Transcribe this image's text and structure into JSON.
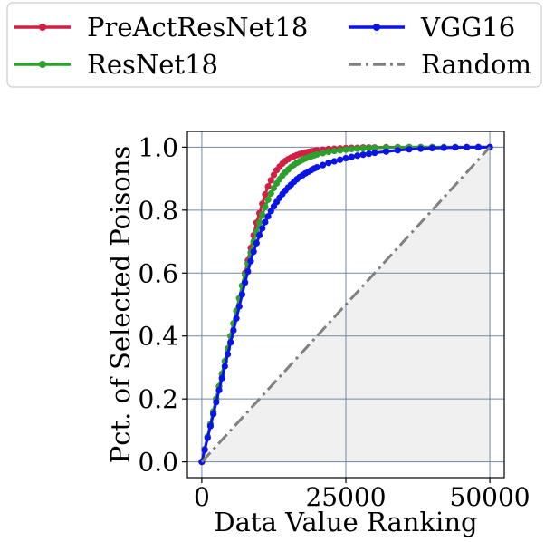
{
  "chart_data": {
    "type": "line",
    "xlabel": "Data Value Ranking",
    "ylabel": "Pct. of Selected Poisons",
    "xlim": [
      -2500,
      52500
    ],
    "ylim": [
      -0.05,
      1.05
    ],
    "xticks": [
      0,
      25000,
      50000
    ],
    "xtick_labels": [
      "0",
      "25000",
      "50000"
    ],
    "yticks": [
      0.0,
      0.2,
      0.4,
      0.6,
      0.8,
      1.0
    ],
    "ytick_labels": [
      "0.0",
      "0.2",
      "0.4",
      "0.6",
      "0.8",
      "1.0"
    ],
    "grid": true,
    "grid_color": "#7486a6",
    "shade_under_random": true,
    "shade_color": "#f1f0f0",
    "legend_position": "top (above plot), 2 columns",
    "series": [
      {
        "name": "PreActResNet18",
        "color": "#d11f45",
        "marker": "circle",
        "x": [
          0,
          500,
          1000,
          1500,
          2000,
          2500,
          3000,
          3500,
          4000,
          4500,
          5000,
          5500,
          6000,
          6500,
          7000,
          7500,
          8000,
          8500,
          9000,
          9500,
          10000,
          10500,
          11000,
          11500,
          12000,
          12500,
          13000,
          13500,
          14000,
          14500,
          15000,
          15500,
          16000,
          16500,
          17000,
          17500,
          18000,
          18500,
          19000,
          19500,
          20000,
          21000,
          22000,
          23000,
          24000,
          25000,
          26000,
          27000,
          28000,
          29000,
          30000,
          32000,
          34000,
          36000,
          38000,
          40000,
          42000,
          44000,
          46000,
          48000,
          50000
        ],
        "y": [
          0.0,
          0.04,
          0.08,
          0.12,
          0.16,
          0.2,
          0.24,
          0.28,
          0.32,
          0.36,
          0.4,
          0.44,
          0.48,
          0.52,
          0.56,
          0.6,
          0.64,
          0.68,
          0.72,
          0.76,
          0.79,
          0.82,
          0.85,
          0.875,
          0.895,
          0.912,
          0.927,
          0.938,
          0.948,
          0.956,
          0.962,
          0.967,
          0.971,
          0.975,
          0.978,
          0.981,
          0.983,
          0.985,
          0.987,
          0.988,
          0.99,
          0.992,
          0.994,
          0.995,
          0.996,
          0.997,
          0.998,
          0.998,
          0.999,
          0.999,
          0.999,
          1.0,
          1.0,
          1.0,
          1.0,
          1.0,
          1.0,
          1.0,
          1.0,
          1.0,
          1.0
        ]
      },
      {
        "name": "ResNet18",
        "color": "#2ca02c",
        "marker": "circle",
        "x": [
          0,
          500,
          1000,
          1500,
          2000,
          2500,
          3000,
          3500,
          4000,
          4500,
          5000,
          5500,
          6000,
          6500,
          7000,
          7500,
          8000,
          8500,
          9000,
          9500,
          10000,
          10500,
          11000,
          11500,
          12000,
          12500,
          13000,
          13500,
          14000,
          14500,
          15000,
          15500,
          16000,
          16500,
          17000,
          17500,
          18000,
          18500,
          19000,
          19500,
          20000,
          21000,
          22000,
          23000,
          24000,
          25000,
          26000,
          27000,
          28000,
          29000,
          30000,
          32000,
          34000,
          36000,
          38000,
          40000,
          42000,
          44000,
          46000,
          48000,
          50000
        ],
        "y": [
          0.0,
          0.04,
          0.08,
          0.12,
          0.16,
          0.2,
          0.24,
          0.28,
          0.32,
          0.36,
          0.4,
          0.44,
          0.48,
          0.52,
          0.56,
          0.595,
          0.63,
          0.665,
          0.7,
          0.73,
          0.76,
          0.785,
          0.81,
          0.833,
          0.853,
          0.87,
          0.885,
          0.898,
          0.91,
          0.92,
          0.929,
          0.937,
          0.944,
          0.95,
          0.955,
          0.96,
          0.964,
          0.968,
          0.971,
          0.974,
          0.977,
          0.981,
          0.985,
          0.988,
          0.99,
          0.992,
          0.994,
          0.995,
          0.996,
          0.997,
          0.998,
          0.999,
          0.999,
          1.0,
          1.0,
          1.0,
          1.0,
          1.0,
          1.0,
          1.0,
          1.0
        ]
      },
      {
        "name": "VGG16",
        "color": "#0a14e6",
        "marker": "circle",
        "x": [
          0,
          500,
          1000,
          1500,
          2000,
          2500,
          3000,
          3500,
          4000,
          4500,
          5000,
          5500,
          6000,
          6500,
          7000,
          7500,
          8000,
          8500,
          9000,
          9500,
          10000,
          10500,
          11000,
          11500,
          12000,
          12500,
          13000,
          13500,
          14000,
          14500,
          15000,
          15500,
          16000,
          16500,
          17000,
          17500,
          18000,
          18500,
          19000,
          19500,
          20000,
          21000,
          22000,
          23000,
          24000,
          25000,
          26000,
          27000,
          28000,
          29000,
          30000,
          32000,
          34000,
          36000,
          38000,
          40000,
          42000,
          44000,
          46000,
          48000,
          50000
        ],
        "y": [
          0.0,
          0.038,
          0.076,
          0.114,
          0.152,
          0.19,
          0.228,
          0.266,
          0.304,
          0.342,
          0.38,
          0.418,
          0.456,
          0.494,
          0.532,
          0.57,
          0.605,
          0.638,
          0.668,
          0.695,
          0.72,
          0.742,
          0.762,
          0.78,
          0.797,
          0.812,
          0.826,
          0.839,
          0.851,
          0.862,
          0.872,
          0.881,
          0.89,
          0.898,
          0.905,
          0.911,
          0.917,
          0.922,
          0.927,
          0.932,
          0.936,
          0.943,
          0.95,
          0.955,
          0.96,
          0.965,
          0.969,
          0.973,
          0.976,
          0.979,
          0.982,
          0.986,
          0.99,
          0.993,
          0.995,
          0.997,
          0.998,
          0.999,
          1.0,
          1.0,
          1.0
        ]
      },
      {
        "name": "Random",
        "color": "#808080",
        "marker": "none",
        "linestyle": "dashdot",
        "x": [
          0,
          50000
        ],
        "y": [
          0.0,
          1.0
        ]
      }
    ]
  }
}
